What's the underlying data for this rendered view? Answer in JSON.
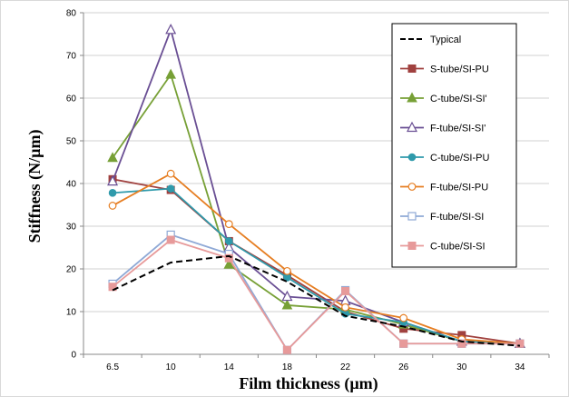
{
  "chart_data": {
    "type": "line",
    "title": "",
    "xlabel": "Film thickness (µm)",
    "ylabel": "Stiffness (N/µm)",
    "categories": [
      "6.5",
      "10",
      "14",
      "18",
      "22",
      "26",
      "30",
      "34"
    ],
    "ylim": [
      0,
      80
    ],
    "yticks": [
      0,
      10,
      20,
      30,
      40,
      50,
      60,
      70,
      80
    ],
    "grid": "horizontal",
    "legend_position": "top-right",
    "series": [
      {
        "name": "Typical",
        "color": "#000000",
        "dash": true,
        "marker": "none",
        "values": [
          15.0,
          21.5,
          23.0,
          17.0,
          9.0,
          6.5,
          3.0,
          2.0
        ]
      },
      {
        "name": "S-tube/SI-PU",
        "color": "#a0413f",
        "marker": "square",
        "values": [
          41.0,
          38.5,
          26.5,
          18.5,
          10.0,
          6.0,
          4.5,
          2.5
        ]
      },
      {
        "name": "C-tube/SI-SI'",
        "color": "#77a036",
        "marker": "triangle",
        "values": [
          46.0,
          65.5,
          21.0,
          11.5,
          10.5,
          7.0,
          3.0,
          2.5
        ]
      },
      {
        "name": "F-tube/SI-SI'",
        "color": "#6a4f94",
        "marker": "triangle-open",
        "values": [
          40.5,
          76.0,
          25.0,
          13.5,
          12.5,
          7.5,
          3.0,
          2.5
        ]
      },
      {
        "name": "C-tube/SI-PU",
        "color": "#2f9aab",
        "marker": "circle",
        "values": [
          37.8,
          38.8,
          26.5,
          18.0,
          9.5,
          7.5,
          3.0,
          2.5
        ]
      },
      {
        "name": "F-tube/SI-PU",
        "color": "#e67e22",
        "marker": "circle-open",
        "values": [
          34.8,
          42.3,
          30.5,
          19.5,
          11.0,
          8.5,
          3.5,
          2.5
        ]
      },
      {
        "name": "F-tube/SI-SI",
        "color": "#8fa9d6",
        "marker": "square-open",
        "values": [
          16.5,
          28.0,
          23.5,
          1.0,
          15.0,
          2.5,
          2.5,
          2.5
        ]
      },
      {
        "name": "C-tube/SI-SI",
        "color": "#e79a9a",
        "marker": "square",
        "values": [
          15.8,
          26.8,
          22.5,
          1.0,
          14.8,
          2.5,
          2.5,
          2.5
        ]
      }
    ]
  }
}
